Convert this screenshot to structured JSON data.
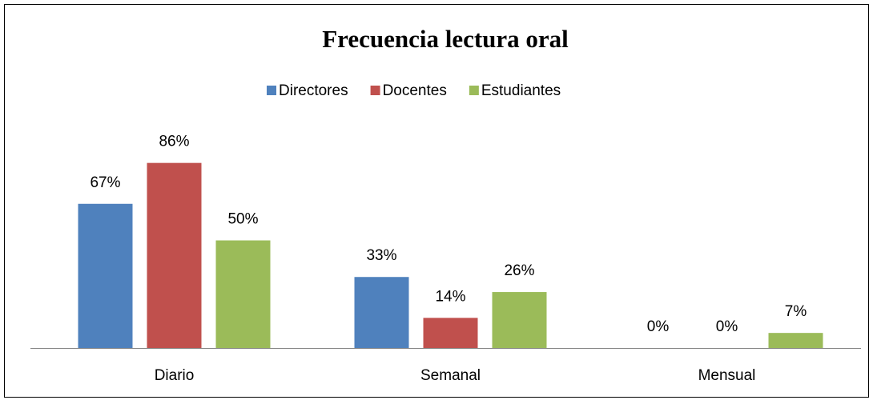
{
  "chart_data": {
    "type": "bar",
    "title": "Frecuencia lectura oral",
    "categories": [
      "Diario",
      "Semanal",
      "Mensual"
    ],
    "series": [
      {
        "name": "Directores",
        "color": "#4f81bd",
        "values": [
          67,
          33,
          0
        ],
        "value_labels": [
          "67%",
          "33%",
          "0%"
        ]
      },
      {
        "name": "Docentes",
        "color": "#c0504d",
        "values": [
          86,
          14,
          0
        ],
        "value_labels": [
          "86%",
          "14%",
          "0%"
        ]
      },
      {
        "name": "Estudiantes",
        "color": "#9bbb59",
        "values": [
          50,
          26,
          7
        ],
        "value_labels": [
          "50%",
          "26%",
          "7%"
        ]
      }
    ],
    "legend": "top"
  }
}
